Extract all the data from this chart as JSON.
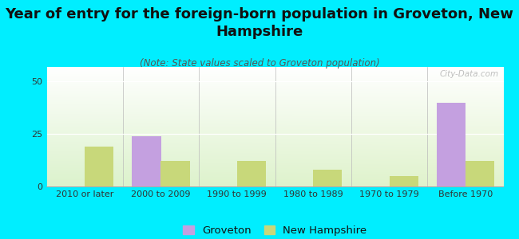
{
  "title": "Year of entry for the foreign-born population in Groveton, New\nHampshire",
  "subtitle": "(Note: State values scaled to Groveton population)",
  "categories": [
    "2010 or later",
    "2000 to 2009",
    "1990 to 1999",
    "1980 to 1989",
    "1970 to 1979",
    "Before 1970"
  ],
  "groveton_values": [
    0,
    24,
    0,
    0,
    0,
    40
  ],
  "nh_values": [
    19,
    12,
    12,
    8,
    5,
    12
  ],
  "groveton_color": "#c4a0e0",
  "nh_color": "#c8d87a",
  "background_color": "#00eeff",
  "ylim": [
    0,
    57
  ],
  "yticks": [
    0,
    25,
    50
  ],
  "bar_width": 0.38,
  "title_fontsize": 13,
  "subtitle_fontsize": 8.5,
  "tick_fontsize": 8,
  "legend_fontsize": 9.5,
  "watermark": "City-Data.com"
}
